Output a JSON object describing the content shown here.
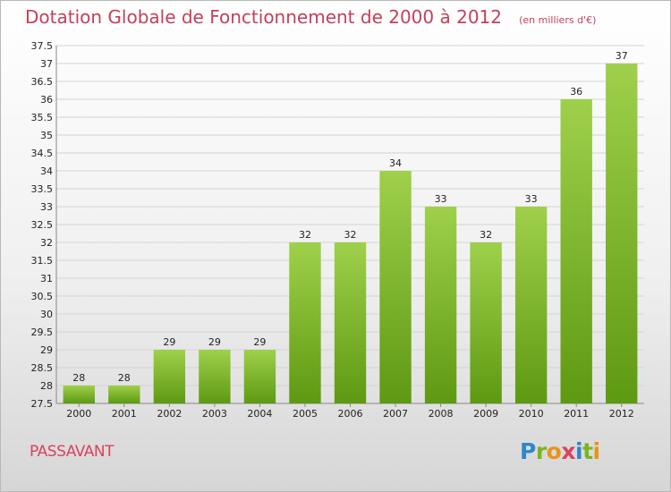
{
  "chart_data": {
    "type": "bar",
    "title": "Dotation Globale de Fonctionnement de 2000 à 2012",
    "unit_note": "(en milliers d'€)",
    "categories": [
      "2000",
      "2001",
      "2002",
      "2003",
      "2004",
      "2005",
      "2006",
      "2007",
      "2008",
      "2009",
      "2010",
      "2011",
      "2012"
    ],
    "values": [
      28,
      28,
      29,
      29,
      29,
      32,
      32,
      34,
      33,
      32,
      33,
      36,
      37
    ],
    "value_labels": [
      "28",
      "28",
      "29",
      "29",
      "29",
      "32",
      "32",
      "34",
      "33",
      "32",
      "33",
      "36",
      "37"
    ],
    "yticks": [
      "27.5",
      "28",
      "28.5",
      "29",
      "29.5",
      "30",
      "30.5",
      "31",
      "31.5",
      "32",
      "32.5",
      "33",
      "33.5",
      "34",
      "34.5",
      "35",
      "35.5",
      "36",
      "36.5",
      "37",
      "37.5"
    ],
    "ylim": [
      27.5,
      37.5
    ],
    "grid": "horizontal",
    "bar_color": "#7ab51d",
    "title_color": "#c4405a"
  },
  "footer": {
    "commune": "PASSAVANT",
    "logo_text": "Proxiti"
  }
}
